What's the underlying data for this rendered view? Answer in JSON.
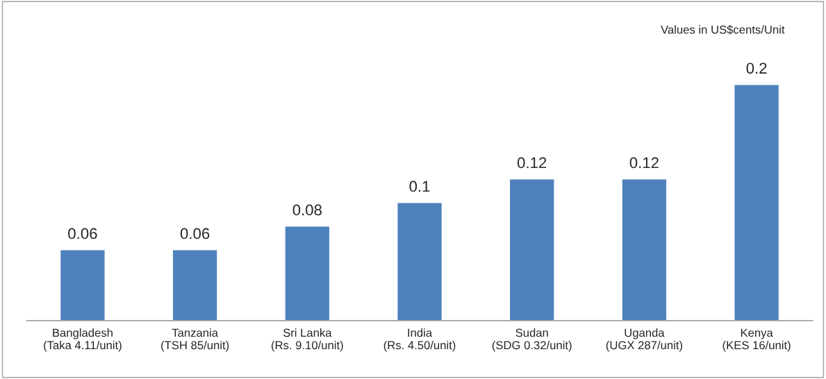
{
  "chart_data": {
    "type": "bar",
    "categories": [
      "Bangladesh\n(Taka 4.11/unit)",
      "Tanzania\n(TSH 85/unit)",
      "Sri Lanka\n(Rs. 9.10/unit)",
      "India\n(Rs. 4.50/unit)",
      "Sudan\n(SDG 0.32/unit)",
      "Uganda\n(UGX 287/unit)",
      "Kenya\n(KES 16/unit)"
    ],
    "values": [
      0.06,
      0.06,
      0.08,
      0.1,
      0.12,
      0.12,
      0.2
    ],
    "color": "#4f81bd",
    "data_labels": true,
    "annotations": [
      "Values in US$cents/Unit"
    ],
    "grid": false,
    "legend": false
  }
}
